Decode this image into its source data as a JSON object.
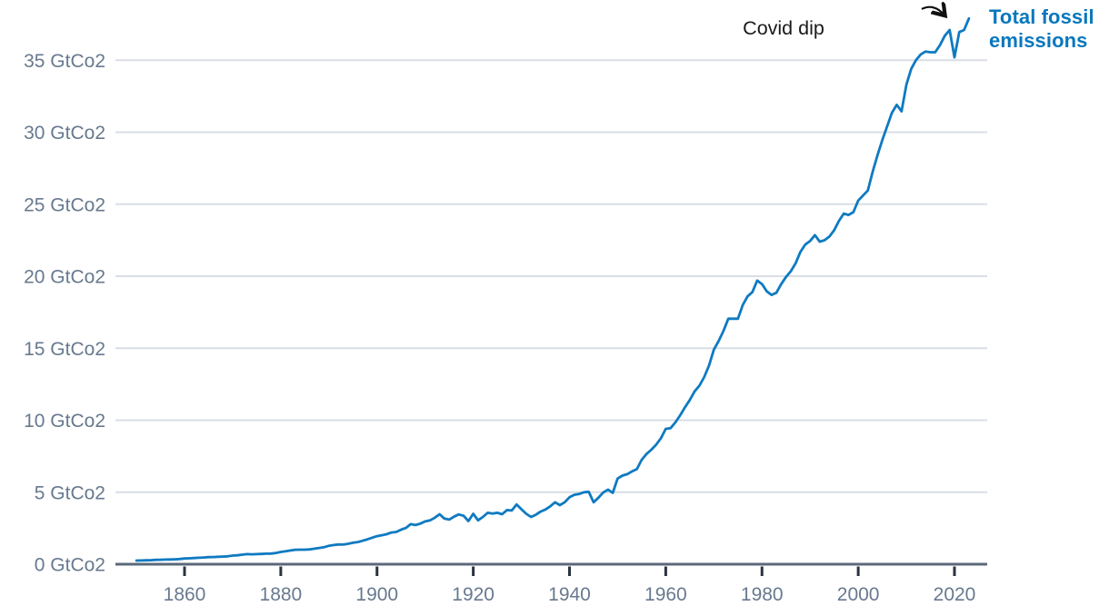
{
  "chart_data": {
    "type": "line",
    "title": "",
    "unit": "GtCo2",
    "series_label": "Total fossil emissions",
    "annotation": {
      "text": "Covid dip",
      "target_year": 2020
    },
    "x_ticks": [
      1860,
      1880,
      1900,
      1920,
      1940,
      1960,
      1980,
      2000,
      2020
    ],
    "y_ticks": [
      {
        "value": 0,
        "label": "0 GtCo2"
      },
      {
        "value": 5,
        "label": "5 GtCo2"
      },
      {
        "value": 10,
        "label": "10 GtCo2"
      },
      {
        "value": 15,
        "label": "15 GtCo2"
      },
      {
        "value": 20,
        "label": "20 GtCo2"
      },
      {
        "value": 25,
        "label": "25 GtCo2"
      },
      {
        "value": 30,
        "label": "30 GtCo2"
      },
      {
        "value": 35,
        "label": "35 GtCo2"
      }
    ],
    "xlim": [
      1850,
      2027
    ],
    "ylim": [
      0,
      38.5
    ],
    "grid": true,
    "legend_position": "right of line end",
    "x": [
      1850,
      1851,
      1852,
      1853,
      1854,
      1855,
      1856,
      1857,
      1858,
      1859,
      1860,
      1861,
      1862,
      1863,
      1864,
      1865,
      1866,
      1867,
      1868,
      1869,
      1870,
      1871,
      1872,
      1873,
      1874,
      1875,
      1876,
      1877,
      1878,
      1879,
      1880,
      1881,
      1882,
      1883,
      1884,
      1885,
      1886,
      1887,
      1888,
      1889,
      1890,
      1891,
      1892,
      1893,
      1894,
      1895,
      1896,
      1897,
      1898,
      1899,
      1900,
      1901,
      1902,
      1903,
      1904,
      1905,
      1906,
      1907,
      1908,
      1909,
      1910,
      1911,
      1912,
      1913,
      1914,
      1915,
      1916,
      1917,
      1918,
      1919,
      1920,
      1921,
      1922,
      1923,
      1924,
      1925,
      1926,
      1927,
      1928,
      1929,
      1930,
      1931,
      1932,
      1933,
      1934,
      1935,
      1936,
      1937,
      1938,
      1939,
      1940,
      1941,
      1942,
      1943,
      1944,
      1945,
      1946,
      1947,
      1948,
      1949,
      1950,
      1951,
      1952,
      1953,
      1954,
      1955,
      1956,
      1957,
      1958,
      1959,
      1960,
      1961,
      1962,
      1963,
      1964,
      1965,
      1966,
      1967,
      1968,
      1969,
      1970,
      1971,
      1972,
      1973,
      1974,
      1975,
      1976,
      1977,
      1978,
      1979,
      1980,
      1981,
      1982,
      1983,
      1984,
      1985,
      1986,
      1987,
      1988,
      1989,
      1990,
      1991,
      1992,
      1993,
      1994,
      1995,
      1996,
      1997,
      1998,
      1999,
      2000,
      2001,
      2002,
      2003,
      2004,
      2005,
      2006,
      2007,
      2008,
      2009,
      2010,
      2011,
      2012,
      2013,
      2014,
      2015,
      2016,
      2017,
      2018,
      2019,
      2020,
      2021,
      2022,
      2023
    ],
    "values": [
      0.25,
      0.26,
      0.27,
      0.28,
      0.3,
      0.31,
      0.32,
      0.33,
      0.34,
      0.36,
      0.4,
      0.41,
      0.43,
      0.45,
      0.47,
      0.49,
      0.5,
      0.52,
      0.53,
      0.55,
      0.6,
      0.62,
      0.66,
      0.7,
      0.69,
      0.7,
      0.71,
      0.73,
      0.74,
      0.78,
      0.85,
      0.9,
      0.95,
      1.0,
      1.01,
      1.01,
      1.03,
      1.08,
      1.13,
      1.18,
      1.28,
      1.33,
      1.37,
      1.36,
      1.42,
      1.49,
      1.54,
      1.63,
      1.73,
      1.84,
      1.95,
      2.01,
      2.08,
      2.2,
      2.24,
      2.4,
      2.52,
      2.78,
      2.72,
      2.82,
      2.97,
      3.04,
      3.23,
      3.47,
      3.17,
      3.1,
      3.3,
      3.46,
      3.36,
      3.0,
      3.5,
      3.05,
      3.28,
      3.57,
      3.52,
      3.57,
      3.47,
      3.76,
      3.73,
      4.15,
      3.82,
      3.5,
      3.28,
      3.43,
      3.65,
      3.8,
      4.02,
      4.3,
      4.1,
      4.3,
      4.65,
      4.82,
      4.88,
      5.0,
      5.03,
      4.3,
      4.62,
      4.98,
      5.18,
      4.95,
      5.95,
      6.15,
      6.25,
      6.45,
      6.6,
      7.25,
      7.65,
      7.95,
      8.3,
      8.75,
      9.4,
      9.45,
      9.85,
      10.35,
      10.9,
      11.4,
      12.0,
      12.4,
      13.0,
      13.8,
      14.9,
      15.5,
      16.2,
      17.05,
      17.05,
      17.05,
      18.0,
      18.6,
      18.9,
      19.7,
      19.45,
      18.95,
      18.7,
      18.85,
      19.45,
      19.95,
      20.35,
      20.9,
      21.7,
      22.2,
      22.45,
      22.85,
      22.4,
      22.5,
      22.75,
      23.2,
      23.85,
      24.35,
      24.25,
      24.45,
      25.25,
      25.6,
      25.95,
      27.25,
      28.4,
      29.45,
      30.4,
      31.35,
      31.9,
      31.45,
      33.3,
      34.4,
      35.0,
      35.4,
      35.6,
      35.55,
      35.55,
      36.05,
      36.7,
      37.1,
      35.2,
      36.95,
      37.1,
      37.9
    ],
    "colors": {
      "line": "#0f7ac1",
      "series_label": "#0877bd",
      "grid": "#d9dee4",
      "axis": "#5b6879",
      "tick": "#2a333f",
      "tick_label": "#68798f",
      "annotation_text": "#1a1a1a",
      "arrow": "#111111",
      "background": "#ffffff"
    }
  }
}
